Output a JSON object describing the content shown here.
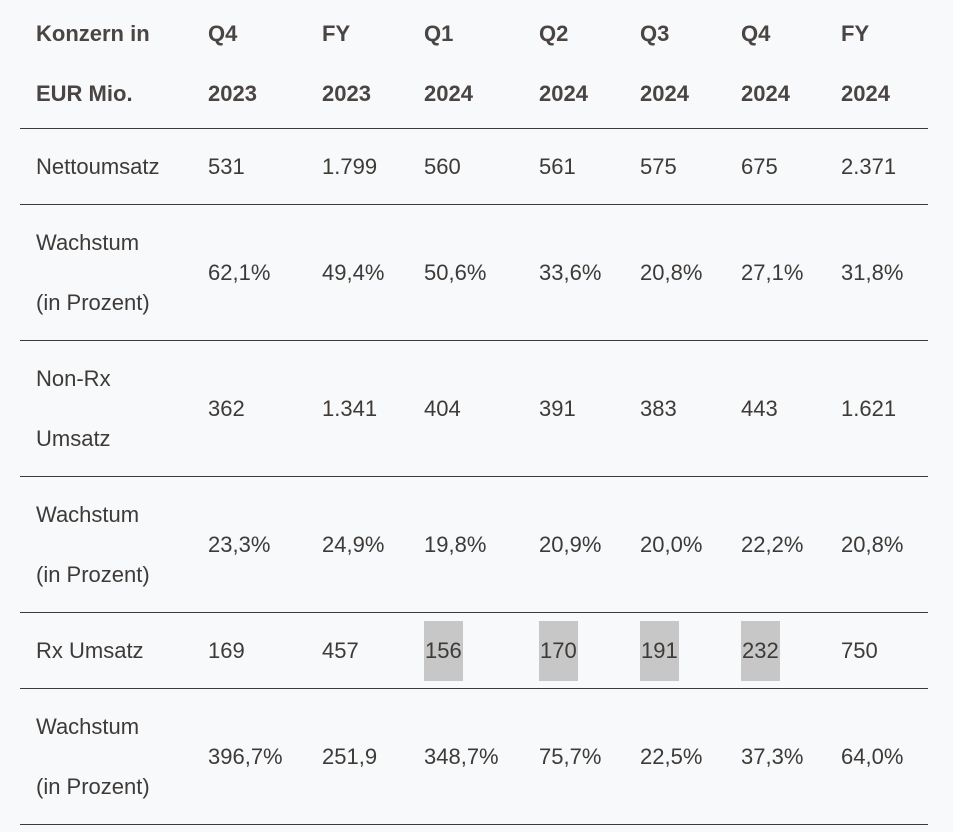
{
  "header": {
    "label_lines": [
      "Konzern in",
      "EUR Mio."
    ],
    "columns": [
      {
        "top": "Q4",
        "bottom": "2023"
      },
      {
        "top": "FY",
        "bottom": "2023"
      },
      {
        "top": "Q1",
        "bottom": "2024"
      },
      {
        "top": "Q2",
        "bottom": "2024"
      },
      {
        "top": "Q3",
        "bottom": "2024"
      },
      {
        "top": "Q4",
        "bottom": "2024"
      },
      {
        "top": "FY",
        "bottom": "2024"
      }
    ]
  },
  "rows": [
    {
      "label_lines": [
        "Nettoumsatz"
      ],
      "values": [
        "531",
        "1.799",
        "560",
        "561",
        "575",
        "675",
        "2.371"
      ]
    },
    {
      "label_lines": [
        "Wachstum",
        "(in Prozent)"
      ],
      "values": [
        "62,1%",
        "49,4%",
        "50,6%",
        "33,6%",
        "20,8%",
        "27,1%",
        "31,8%"
      ]
    },
    {
      "label_lines": [
        "Non-Rx",
        "Umsatz"
      ],
      "values": [
        "362",
        "1.341",
        "404",
        "391",
        "383",
        "443",
        "1.621"
      ]
    },
    {
      "label_lines": [
        "Wachstum",
        "(in Prozent)"
      ],
      "values": [
        "23,3%",
        "24,9%",
        "19,8%",
        "20,9%",
        "20,0%",
        "22,2%",
        "20,8%"
      ]
    },
    {
      "label_lines": [
        "Rx Umsatz"
      ],
      "values": [
        "169",
        "457",
        "156",
        "170",
        "191",
        "232",
        "750"
      ],
      "highlighted": [
        2,
        3,
        4,
        5
      ]
    },
    {
      "label_lines": [
        "Wachstum",
        "(in Prozent)"
      ],
      "values": [
        "396,7%",
        "251,9",
        "348,7%",
        "75,7%",
        "22,5%",
        "37,3%",
        "64,0%"
      ]
    }
  ],
  "colors": {
    "text": "#3d3a37",
    "background": "#f8f9fa",
    "highlight": "#c7c7c7"
  }
}
